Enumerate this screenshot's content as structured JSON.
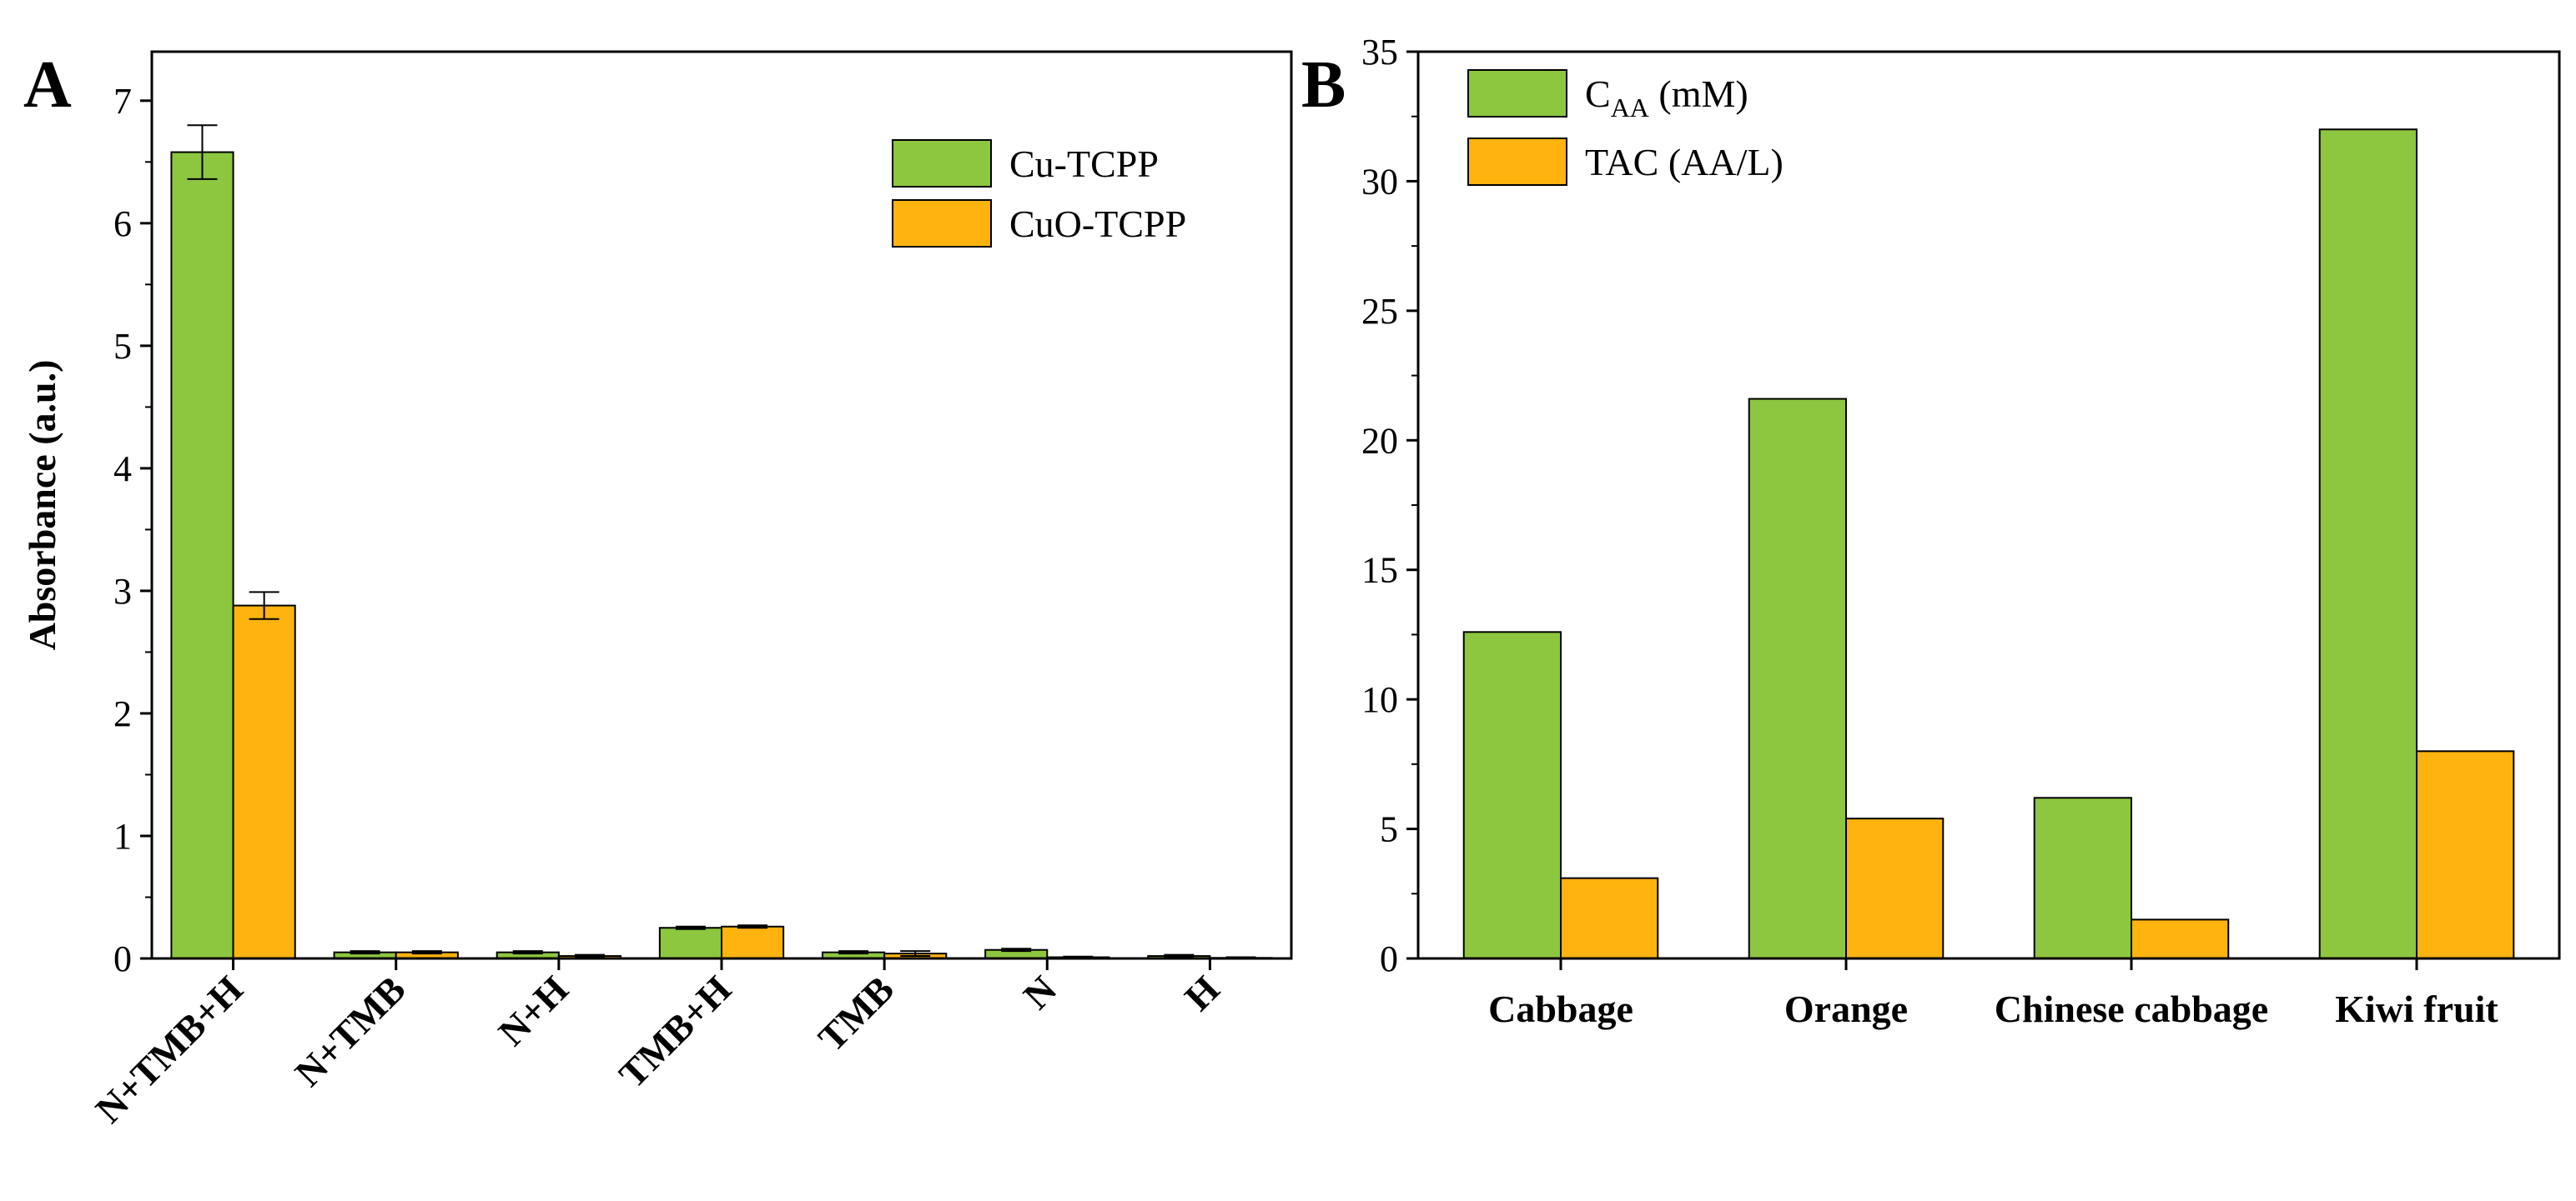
{
  "colors": {
    "green": "#8DC63F",
    "orange": "#FFB30F",
    "axis": "#000000"
  },
  "chart_data": [
    {
      "panel": "A",
      "type": "bar",
      "ylabel": "Absorbance (a.u.)",
      "ylim": [
        0,
        7.4
      ],
      "yticks": [
        0,
        1,
        2,
        3,
        4,
        5,
        6,
        7
      ],
      "categories": [
        "N+TMB+H",
        "N+TMB",
        "N+H",
        "TMB+H",
        "TMB",
        "N",
        "H"
      ],
      "legend_position": "top-right",
      "series": [
        {
          "name": "Cu-TCPP",
          "color": "#8DC63F",
          "values": [
            6.58,
            0.05,
            0.05,
            0.25,
            0.05,
            0.07,
            0.02
          ],
          "errors": [
            0.22,
            0.01,
            0.01,
            0.01,
            0.01,
            0.01,
            0.01
          ]
        },
        {
          "name": "CuO-TCPP",
          "color": "#FFB30F",
          "values": [
            2.88,
            0.05,
            0.02,
            0.26,
            0.04,
            0.01,
            0.005
          ],
          "errors": [
            0.11,
            0.01,
            0.01,
            0.01,
            0.02,
            0.005,
            0.005
          ]
        }
      ]
    },
    {
      "panel": "B",
      "type": "bar",
      "ylabel": "",
      "ylim": [
        0,
        35
      ],
      "yticks": [
        0,
        5,
        10,
        15,
        20,
        25,
        30,
        35
      ],
      "categories": [
        "Cabbage",
        "Orange",
        "Chinese cabbage",
        "Kiwi fruit"
      ],
      "legend_position": "top-left",
      "series": [
        {
          "name": "C",
          "subscript": "AA",
          "suffix": " (mM)",
          "color": "#8DC63F",
          "values": [
            12.6,
            21.6,
            6.2,
            32.0
          ]
        },
        {
          "name": "TAC (AA/L)",
          "subscript": "",
          "suffix": "",
          "color": "#FFB30F",
          "values": [
            3.1,
            5.4,
            1.5,
            8.0
          ]
        }
      ]
    }
  ]
}
